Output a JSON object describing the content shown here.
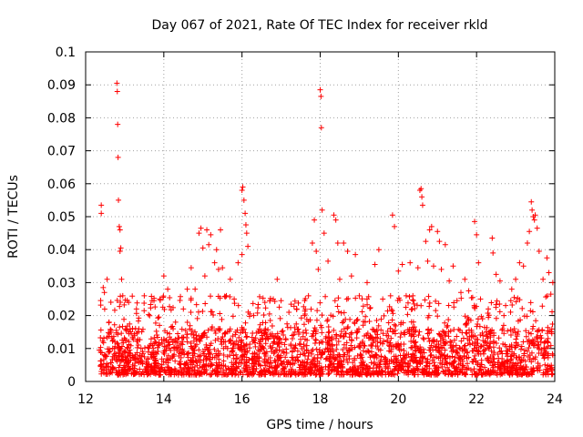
{
  "chart_data": {
    "type": "scatter",
    "title": "Day 067 of 2021, Rate Of TEC Index for receiver rkld",
    "xlabel": "GPS time / hours",
    "ylabel": "ROTI / TECUs",
    "xlim": [
      12,
      24
    ],
    "ylim": [
      0,
      0.1
    ],
    "x_ticks": [
      12,
      14,
      16,
      18,
      20,
      22,
      24
    ],
    "x_tick_labels": [
      "12",
      "14",
      "16",
      "18",
      "20",
      "22",
      "24"
    ],
    "y_ticks": [
      0,
      0.01,
      0.02,
      0.03,
      0.04,
      0.05,
      0.06,
      0.07,
      0.08,
      0.09,
      0.1
    ],
    "y_tick_labels": [
      "0",
      "0.01",
      "0.02",
      "0.03",
      "0.04",
      "0.05",
      "0.06",
      "0.07",
      "0.08",
      "0.09",
      "0.1"
    ],
    "grid": true,
    "marker": "plus",
    "marker_color": "#ff0000",
    "series": [
      {
        "name": "ROTI",
        "points": [
          [
            12.35,
            0.0095
          ],
          [
            12.38,
            0.0048
          ],
          [
            12.4,
            0.0535
          ],
          [
            12.4,
            0.051
          ],
          [
            12.45,
            0.0285
          ],
          [
            12.48,
            0.027
          ],
          [
            12.55,
            0.031
          ],
          [
            12.6,
            0.018
          ],
          [
            12.7,
            0.0125
          ],
          [
            12.8,
            0.0905
          ],
          [
            12.81,
            0.088
          ],
          [
            12.82,
            0.078
          ],
          [
            12.83,
            0.068
          ],
          [
            12.84,
            0.055
          ],
          [
            12.86,
            0.047
          ],
          [
            12.88,
            0.046
          ],
          [
            12.9,
            0.0405
          ],
          [
            12.88,
            0.0395
          ],
          [
            12.92,
            0.031
          ],
          [
            12.95,
            0.026
          ],
          [
            13.1,
            0.024
          ],
          [
            13.3,
            0.022
          ],
          [
            13.5,
            0.026
          ],
          [
            13.7,
            0.0245
          ],
          [
            13.9,
            0.025
          ],
          [
            14.0,
            0.032
          ],
          [
            14.1,
            0.028
          ],
          [
            14.3,
            0.018
          ],
          [
            14.5,
            0.022
          ],
          [
            14.6,
            0.028
          ],
          [
            14.7,
            0.0345
          ],
          [
            14.8,
            0.028
          ],
          [
            14.9,
            0.045
          ],
          [
            14.95,
            0.0465
          ],
          [
            15.0,
            0.0405
          ],
          [
            15.05,
            0.032
          ],
          [
            15.1,
            0.046
          ],
          [
            15.15,
            0.0415
          ],
          [
            15.2,
            0.0445
          ],
          [
            15.3,
            0.036
          ],
          [
            15.35,
            0.04
          ],
          [
            15.4,
            0.034
          ],
          [
            15.45,
            0.046
          ],
          [
            15.5,
            0.0345
          ],
          [
            15.6,
            0.026
          ],
          [
            15.7,
            0.031
          ],
          [
            15.8,
            0.025
          ],
          [
            15.9,
            0.036
          ],
          [
            16.0,
            0.058
          ],
          [
            16.02,
            0.059
          ],
          [
            16.05,
            0.055
          ],
          [
            16.08,
            0.051
          ],
          [
            16.1,
            0.0475
          ],
          [
            16.12,
            0.045
          ],
          [
            16.15,
            0.041
          ],
          [
            16.0,
            0.0385
          ],
          [
            16.3,
            0.02
          ],
          [
            16.6,
            0.0155
          ],
          [
            16.8,
            0.025
          ],
          [
            16.9,
            0.031
          ],
          [
            17.0,
            0.0245
          ],
          [
            17.2,
            0.021
          ],
          [
            17.4,
            0.022
          ],
          [
            17.6,
            0.02
          ],
          [
            17.7,
            0.026
          ],
          [
            17.8,
            0.042
          ],
          [
            17.85,
            0.049
          ],
          [
            17.9,
            0.0395
          ],
          [
            17.95,
            0.034
          ],
          [
            18.0,
            0.0885
          ],
          [
            18.02,
            0.0865
          ],
          [
            18.03,
            0.077
          ],
          [
            18.05,
            0.052
          ],
          [
            18.1,
            0.045
          ],
          [
            18.2,
            0.0365
          ],
          [
            18.35,
            0.0505
          ],
          [
            18.4,
            0.049
          ],
          [
            18.45,
            0.042
          ],
          [
            18.5,
            0.031
          ],
          [
            18.6,
            0.042
          ],
          [
            18.7,
            0.0395
          ],
          [
            18.8,
            0.032
          ],
          [
            18.9,
            0.0385
          ],
          [
            19.0,
            0.026
          ],
          [
            19.2,
            0.03
          ],
          [
            19.4,
            0.0355
          ],
          [
            19.5,
            0.04
          ],
          [
            19.6,
            0.025
          ],
          [
            19.8,
            0.026
          ],
          [
            19.85,
            0.0505
          ],
          [
            19.9,
            0.047
          ],
          [
            20.0,
            0.0335
          ],
          [
            20.1,
            0.0355
          ],
          [
            20.2,
            0.026
          ],
          [
            20.3,
            0.036
          ],
          [
            20.4,
            0.0235
          ],
          [
            20.5,
            0.0345
          ],
          [
            20.55,
            0.058
          ],
          [
            20.58,
            0.0585
          ],
          [
            20.6,
            0.056
          ],
          [
            20.62,
            0.0535
          ],
          [
            20.7,
            0.0425
          ],
          [
            20.75,
            0.0365
          ],
          [
            20.8,
            0.046
          ],
          [
            20.85,
            0.047
          ],
          [
            20.9,
            0.035
          ],
          [
            21.0,
            0.0455
          ],
          [
            21.05,
            0.0425
          ],
          [
            21.1,
            0.034
          ],
          [
            21.2,
            0.0415
          ],
          [
            21.3,
            0.0305
          ],
          [
            21.4,
            0.035
          ],
          [
            21.5,
            0.0245
          ],
          [
            21.6,
            0.027
          ],
          [
            21.7,
            0.031
          ],
          [
            21.8,
            0.0275
          ],
          [
            21.9,
            0.0255
          ],
          [
            21.95,
            0.0485
          ],
          [
            22.0,
            0.0445
          ],
          [
            22.05,
            0.036
          ],
          [
            22.1,
            0.025
          ],
          [
            22.3,
            0.022
          ],
          [
            22.4,
            0.0435
          ],
          [
            22.42,
            0.039
          ],
          [
            22.5,
            0.0325
          ],
          [
            22.6,
            0.0305
          ],
          [
            22.7,
            0.02
          ],
          [
            22.9,
            0.028
          ],
          [
            23.0,
            0.031
          ],
          [
            23.1,
            0.036
          ],
          [
            23.2,
            0.035
          ],
          [
            23.3,
            0.042
          ],
          [
            23.35,
            0.0455
          ],
          [
            23.4,
            0.0545
          ],
          [
            23.42,
            0.052
          ],
          [
            23.45,
            0.05
          ],
          [
            23.48,
            0.049
          ],
          [
            23.5,
            0.0505
          ],
          [
            23.55,
            0.0465
          ],
          [
            23.6,
            0.0395
          ],
          [
            23.7,
            0.031
          ],
          [
            23.8,
            0.0375
          ],
          [
            23.85,
            0.033
          ],
          [
            23.9,
            0.0265
          ],
          [
            23.95,
            0.03
          ]
        ],
        "baseline_band": {
          "x_range": [
            12.35,
            23.95
          ],
          "typical_range": [
            0.002,
            0.016
          ],
          "note": "dense floor of points"
        }
      }
    ]
  }
}
